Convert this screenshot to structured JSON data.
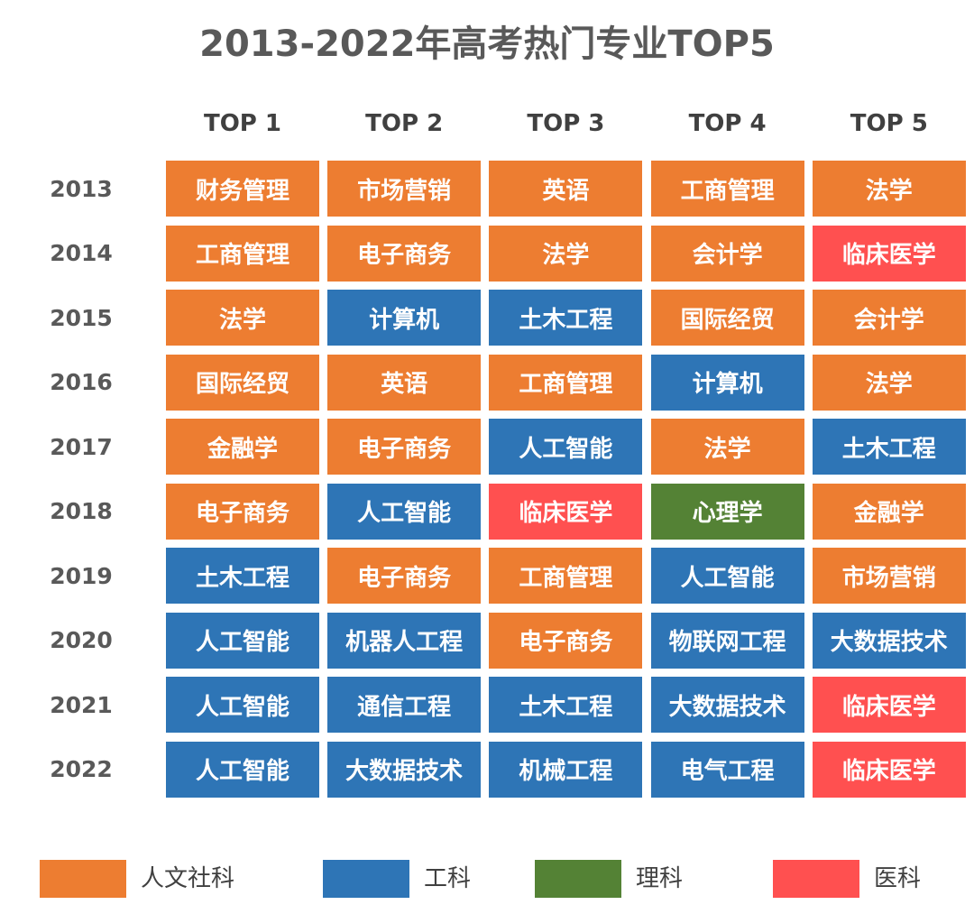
{
  "title": "2013-2022年高考热门专业TOP5",
  "columns": [
    "TOP 1",
    "TOP 2",
    "TOP 3",
    "TOP 4",
    "TOP 5"
  ],
  "rows": [
    {
      "year": "2013",
      "cells": [
        {
          "text": "财务管理",
          "color": "#ed7d31"
        },
        {
          "text": "市场营销",
          "color": "#ed7d31"
        },
        {
          "text": "英语",
          "color": "#ed7d31"
        },
        {
          "text": "工商管理",
          "color": "#ed7d31"
        },
        {
          "text": "法学",
          "color": "#ed7d31"
        }
      ]
    },
    {
      "year": "2014",
      "cells": [
        {
          "text": "工商管理",
          "color": "#ed7d31"
        },
        {
          "text": "电子商务",
          "color": "#ed7d31"
        },
        {
          "text": "法学",
          "color": "#ed7d31"
        },
        {
          "text": "会计学",
          "color": "#ed7d31"
        },
        {
          "text": "临床医学",
          "color": "#ff5050"
        }
      ]
    },
    {
      "year": "2015",
      "cells": [
        {
          "text": "法学",
          "color": "#ed7d31"
        },
        {
          "text": "计算机",
          "color": "#2e75b6"
        },
        {
          "text": "土木工程",
          "color": "#2e75b6"
        },
        {
          "text": "国际经贸",
          "color": "#ed7d31"
        },
        {
          "text": "会计学",
          "color": "#ed7d31"
        }
      ]
    },
    {
      "year": "2016",
      "cells": [
        {
          "text": "国际经贸",
          "color": "#ed7d31"
        },
        {
          "text": "英语",
          "color": "#ed7d31"
        },
        {
          "text": "工商管理",
          "color": "#ed7d31"
        },
        {
          "text": "计算机",
          "color": "#2e75b6"
        },
        {
          "text": "法学",
          "color": "#ed7d31"
        }
      ]
    },
    {
      "year": "2017",
      "cells": [
        {
          "text": "金融学",
          "color": "#ed7d31"
        },
        {
          "text": "电子商务",
          "color": "#ed7d31"
        },
        {
          "text": "人工智能",
          "color": "#2e75b6"
        },
        {
          "text": "法学",
          "color": "#ed7d31"
        },
        {
          "text": "土木工程",
          "color": "#2e75b6"
        }
      ]
    },
    {
      "year": "2018",
      "cells": [
        {
          "text": "电子商务",
          "color": "#ed7d31"
        },
        {
          "text": "人工智能",
          "color": "#2e75b6"
        },
        {
          "text": "临床医学",
          "color": "#ff5050"
        },
        {
          "text": "心理学",
          "color": "#548235"
        },
        {
          "text": "金融学",
          "color": "#ed7d31"
        }
      ]
    },
    {
      "year": "2019",
      "cells": [
        {
          "text": "土木工程",
          "color": "#2e75b6"
        },
        {
          "text": "电子商务",
          "color": "#ed7d31"
        },
        {
          "text": "工商管理",
          "color": "#ed7d31"
        },
        {
          "text": "人工智能",
          "color": "#2e75b6"
        },
        {
          "text": "市场营销",
          "color": "#ed7d31"
        }
      ]
    },
    {
      "year": "2020",
      "cells": [
        {
          "text": "人工智能",
          "color": "#2e75b6"
        },
        {
          "text": "机器人工程",
          "color": "#2e75b6"
        },
        {
          "text": "电子商务",
          "color": "#ed7d31"
        },
        {
          "text": "物联网工程",
          "color": "#2e75b6"
        },
        {
          "text": "大数据技术",
          "color": "#2e75b6"
        }
      ]
    },
    {
      "year": "2021",
      "cells": [
        {
          "text": "人工智能",
          "color": "#2e75b6"
        },
        {
          "text": "通信工程",
          "color": "#2e75b6"
        },
        {
          "text": "土木工程",
          "color": "#2e75b6"
        },
        {
          "text": "大数据技术",
          "color": "#2e75b6"
        },
        {
          "text": "临床医学",
          "color": "#ff5050"
        }
      ]
    },
    {
      "year": "2022",
      "cells": [
        {
          "text": "人工智能",
          "color": "#2e75b6"
        },
        {
          "text": "大数据技术",
          "color": "#2e75b6"
        },
        {
          "text": "机械工程",
          "color": "#2e75b6"
        },
        {
          "text": "电气工程",
          "color": "#2e75b6"
        },
        {
          "text": "临床医学",
          "color": "#ff5050"
        }
      ]
    }
  ],
  "legend": [
    {
      "label": "人文社科",
      "color": "#ed7d31"
    },
    {
      "label": "工科",
      "color": "#2e75b6"
    },
    {
      "label": "理科",
      "color": "#548235"
    },
    {
      "label": "医科",
      "color": "#ff5050"
    }
  ]
}
